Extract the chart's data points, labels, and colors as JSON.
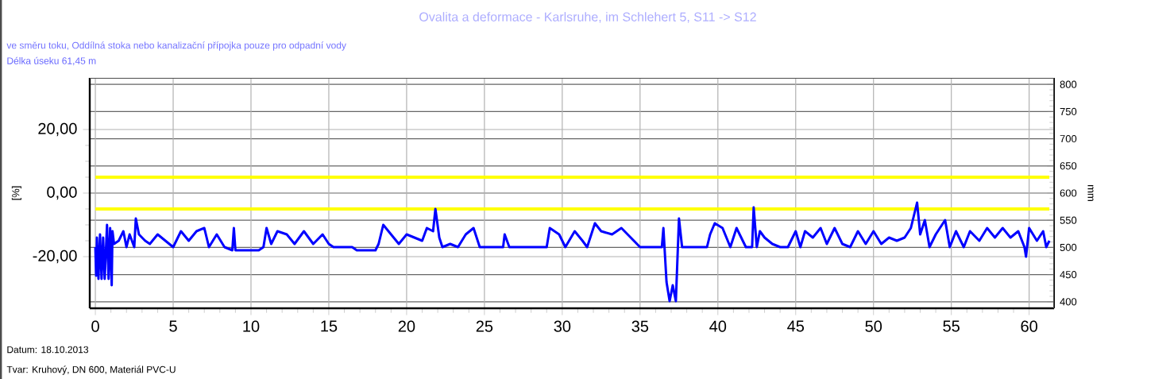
{
  "chart_data": {
    "type": "line",
    "title": "Ovalita a deformace - Karlsruhe, im Schlehert 5, S11 -> S12",
    "subtitle": "ve směru toku, Oddílná stoka nebo kanalizační přípojka pouze pro odpadní vody",
    "annotations": [
      "Délka úseku  61,45 m",
      "Datum: 18.10.2013",
      "Tvar: Kruhový, DN 600, Materiál PVC-U"
    ],
    "ylabel": "[%]",
    "y2label": "mm",
    "x": [
      0,
      0.05,
      0.1,
      0.2,
      0.3,
      0.4,
      0.5,
      0.6,
      0.75,
      0.85,
      0.95,
      1.05,
      1.1,
      1.2,
      1.5,
      1.8,
      2.0,
      2.2,
      2.5,
      2.6,
      2.8,
      3.2,
      3.5,
      4.0,
      4.5,
      5.0,
      5.5,
      6.0,
      6.5,
      7.0,
      7.3,
      7.8,
      8.3,
      8.8,
      8.9,
      9.0,
      10.5,
      10.8,
      11.0,
      11.3,
      11.7,
      12.3,
      12.8,
      13.4,
      14.0,
      14.6,
      15.0,
      15.3,
      16.5,
      16.8,
      18.0,
      18.2,
      18.5,
      19.5,
      20,
      20.5,
      21,
      21.3,
      21.7,
      21.85,
      22.1,
      22.3,
      22.8,
      23.3,
      23.8,
      24.3,
      24.7,
      25.5,
      26.2,
      26.3,
      26.6,
      27.5,
      29,
      29.2,
      29.8,
      30.2,
      30.8,
      31.3,
      31.6,
      32.1,
      32.5,
      33.2,
      33.8,
      34.4,
      35,
      36.4,
      36.5,
      36.7,
      36.9,
      37.1,
      37.3,
      37.5,
      37.7,
      38.5,
      39.3,
      39.5,
      39.8,
      40.3,
      40.8,
      41.2,
      41.8,
      42.2,
      42.3,
      42.5,
      42.7,
      43,
      43.5,
      44,
      44.5,
      45,
      45.3,
      45.6,
      46.1,
      46.6,
      47,
      47.5,
      48,
      48.5,
      49,
      49.5,
      50,
      50.5,
      51,
      51.5,
      52,
      52.4,
      52.8,
      53,
      53.3,
      53.6,
      54,
      54.6,
      54.9,
      55.3,
      55.8,
      56.2,
      56.8,
      57.3,
      57.8,
      58.3,
      58.8,
      59.3,
      59.7,
      59.8,
      60,
      60.5,
      60.9,
      61.1,
      61.3
    ],
    "series": [
      {
        "color": "#0000ff",
        "values": [
          -17,
          -26,
          -14,
          -27,
          -13,
          -27,
          -14,
          -27,
          -10,
          -27,
          -11,
          -29,
          -12,
          -16,
          -15,
          -12,
          -17,
          -13,
          -17,
          -8,
          -13,
          -15,
          -16,
          -13,
          -15,
          -17,
          -12,
          -15,
          -12,
          -11,
          -17,
          -13,
          -17,
          -18,
          -11,
          -18,
          -18,
          -17,
          -11,
          -16,
          -12,
          -13,
          -16,
          -12,
          -16,
          -13,
          -16,
          -17,
          -17,
          -18,
          -18,
          -16,
          -10,
          -16,
          -13,
          -14,
          -15,
          -11,
          -12,
          -5,
          -14,
          -17,
          -16,
          -17,
          -13,
          -11,
          -17,
          -17,
          -17,
          -13,
          -17,
          -17,
          -17,
          -11,
          -13,
          -17,
          -12,
          -15,
          -17,
          -9.5,
          -12,
          -13,
          -11,
          -14,
          -17,
          -17,
          -11,
          -28,
          -34,
          -29,
          -34,
          -8,
          -17,
          -17,
          -17,
          -13,
          -9.5,
          -11,
          -17,
          -11,
          -17,
          -17,
          -4.5,
          -17,
          -12,
          -14,
          -16,
          -17,
          -17,
          -12,
          -17,
          -12,
          -14,
          -11,
          -16,
          -11,
          -16,
          -17,
          -12,
          -16,
          -12,
          -16,
          -14,
          -15,
          -14,
          -11,
          -3,
          -13,
          -8.5,
          -17,
          -13,
          -8.5,
          -17,
          -12,
          -17,
          -12,
          -15,
          -11,
          -14,
          -11,
          -14,
          -12,
          -17,
          -20,
          -11,
          -15,
          -12,
          -17,
          -15
        ]
      }
    ],
    "xlim": [
      -0.36,
      61.6
    ],
    "ylim": [
      -36.25,
      36.25
    ],
    "y2lim": [
      388,
      812
    ],
    "xticks": [
      0,
      5,
      10,
      15,
      20,
      25,
      30,
      35,
      40,
      45,
      50,
      55,
      60
    ],
    "yticks": [
      {
        "value": 20,
        "label": "20,00"
      },
      {
        "value": 0,
        "label": "0,00"
      },
      {
        "value": -20,
        "label": "-20,00"
      }
    ],
    "y2ticks": [
      400,
      450,
      500,
      550,
      600,
      650,
      700,
      750,
      800
    ],
    "ref_lines": [
      {
        "axis": "y",
        "value": 5,
        "color": "#ffff00"
      },
      {
        "axis": "y",
        "value": -5,
        "color": "#ffff00"
      }
    ],
    "grid": true
  }
}
